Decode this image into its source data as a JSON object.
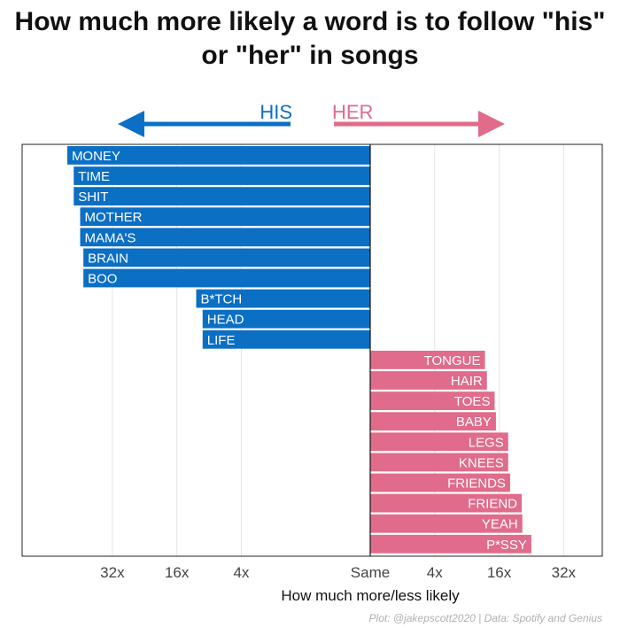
{
  "chart_data": {
    "type": "bar",
    "orientation": "horizontal",
    "title_lines": [
      "How much more likely a word is to follow \"his\"",
      "or \"her\" in songs"
    ],
    "xlabel": "How much more/less likely",
    "caption": "Plot: @jakepscott2020 | Data: Spotify and Genius",
    "direction_labels": {
      "left": "HIS",
      "right": "HER"
    },
    "colors": {
      "his": "#0b6fc4",
      "her": "#e06b8a"
    },
    "x_scale": "log2",
    "xlim": [
      -5.4,
      3.6
    ],
    "x_ticks": [
      {
        "value": -4,
        "label": "32x"
      },
      {
        "value": -3,
        "label": "16x"
      },
      {
        "value": -2,
        "label": "4x"
      },
      {
        "value": 0,
        "label": "Same"
      },
      {
        "value": 1,
        "label": "4x"
      },
      {
        "value": 2,
        "label": "16x"
      },
      {
        "value": 3,
        "label": "32x"
      }
    ],
    "grid": true,
    "bars": [
      {
        "word": "MONEY",
        "value": -4.7,
        "group": "his"
      },
      {
        "word": "TIME",
        "value": -4.6,
        "group": "his"
      },
      {
        "word": "SHIT",
        "value": -4.6,
        "group": "his"
      },
      {
        "word": "MOTHER",
        "value": -4.5,
        "group": "his"
      },
      {
        "word": "MAMA'S",
        "value": -4.5,
        "group": "his"
      },
      {
        "word": "BRAIN",
        "value": -4.45,
        "group": "his"
      },
      {
        "word": "BOO",
        "value": -4.45,
        "group": "his"
      },
      {
        "word": "B*TCH",
        "value": -2.7,
        "group": "his"
      },
      {
        "word": "HEAD",
        "value": -2.6,
        "group": "his"
      },
      {
        "word": "LIFE",
        "value": -2.6,
        "group": "his"
      },
      {
        "word": "TONGUE",
        "value": 1.78,
        "group": "her"
      },
      {
        "word": "HAIR",
        "value": 1.81,
        "group": "her"
      },
      {
        "word": "TOES",
        "value": 1.93,
        "group": "her"
      },
      {
        "word": "BABY",
        "value": 1.95,
        "group": "her"
      },
      {
        "word": "LEGS",
        "value": 2.14,
        "group": "her"
      },
      {
        "word": "KNEES",
        "value": 2.14,
        "group": "her"
      },
      {
        "word": "FRIENDS",
        "value": 2.17,
        "group": "her"
      },
      {
        "word": "FRIEND",
        "value": 2.35,
        "group": "her"
      },
      {
        "word": "YEAH",
        "value": 2.36,
        "group": "her"
      },
      {
        "word": "P*SSY",
        "value": 2.5,
        "group": "her"
      }
    ]
  }
}
